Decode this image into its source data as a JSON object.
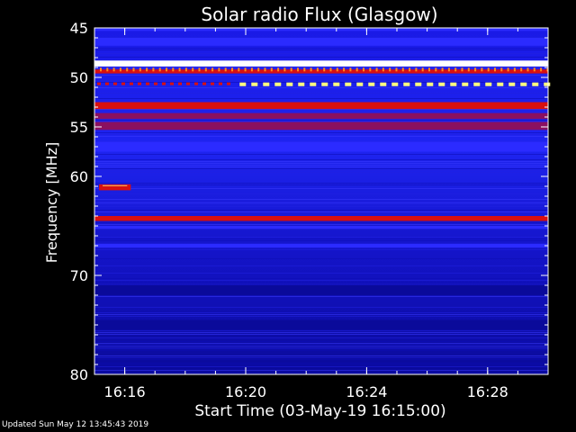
{
  "updated_text": "Updated Sun May 12 13:45:43 2019",
  "chart_data": {
    "type": "heatmap",
    "title": "Solar radio Flux (Glasgow)",
    "xlabel": "Start Time (03-May-19 16:15:00)",
    "ylabel": "Frequency [MHz]",
    "x_range": [
      "16:15:00",
      "16:30:00"
    ],
    "y_range": [
      45,
      80
    ],
    "y_direction": "increasing-downward",
    "x_ticks": [
      "16:16",
      "16:20",
      "16:24",
      "16:28"
    ],
    "x_tick_minutes": [
      16,
      20,
      24,
      28
    ],
    "y_ticks": [
      45,
      50,
      55,
      60,
      70,
      80
    ],
    "colors": {
      "background": "#000000",
      "low": "#0a0a9a",
      "mid": "#2b2bff",
      "high": "#d81010",
      "peak": "#ffff80",
      "max": "#ffffff"
    },
    "bands": [
      {
        "freq_start": 45.0,
        "freq_end": 45.3,
        "level": "mid"
      },
      {
        "freq_start": 46.0,
        "freq_end": 46.8,
        "level": "mid"
      },
      {
        "freq_start": 48.3,
        "freq_end": 48.9,
        "level": "max"
      },
      {
        "freq_start": 49.2,
        "freq_end": 49.6,
        "level": "high"
      },
      {
        "freq_start": 52.5,
        "freq_end": 53.2,
        "level": "high"
      },
      {
        "freq_start": 53.6,
        "freq_end": 54.2,
        "level": "high-dim"
      },
      {
        "freq_start": 54.5,
        "freq_end": 55.3,
        "level": "high-dim"
      },
      {
        "freq_start": 56.5,
        "freq_end": 57.5,
        "level": "mid"
      },
      {
        "freq_start": 64.0,
        "freq_end": 64.5,
        "level": "high"
      },
      {
        "freq_start": 65.0,
        "freq_end": 65.3,
        "level": "mid"
      },
      {
        "freq_start": 66.8,
        "freq_end": 67.2,
        "level": "mid"
      },
      {
        "freq_start": 71.0,
        "freq_end": 72.0,
        "level": "low"
      },
      {
        "freq_start": 74.5,
        "freq_end": 75.5,
        "level": "low"
      }
    ],
    "dashed_signals": [
      {
        "freq": 50.6,
        "minute_start": 15.0,
        "minute_end": 19.6,
        "level": "high"
      },
      {
        "freq": 50.7,
        "minute_start": 19.8,
        "minute_end": 30.0,
        "level": "peak"
      },
      {
        "freq": 49.3,
        "minute_start": 15.0,
        "minute_end": 30.0,
        "level": "peak-dots"
      }
    ],
    "bursts": [
      {
        "freq_start": 60.8,
        "freq_end": 61.4,
        "minute_start": 15.15,
        "minute_end": 16.2,
        "level": "high"
      }
    ]
  }
}
